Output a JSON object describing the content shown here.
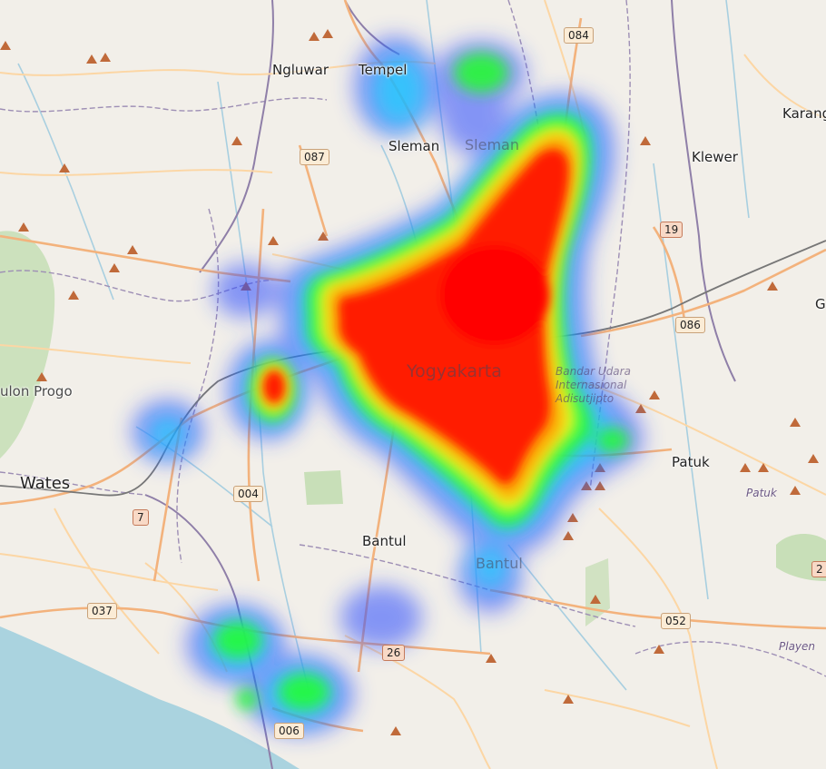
{
  "map": {
    "places": {
      "yogyakarta": "Yogyakarta",
      "sleman": "Sleman",
      "sleman_faded": "Sleman",
      "bantul": "Bantul",
      "bantul_faded": "Bantul",
      "wates": "Wates",
      "ngluwar": "Ngluwar",
      "tempel": "Tempel",
      "klewer": "Klewer",
      "karang": "Karang",
      "patuk": "Patuk",
      "patuk_italic": "Patuk",
      "playen": "Playen",
      "kulon_progo": "ulon Progo",
      "g_edge": "G",
      "airport": "Bandar Udara Internasional Adisutjipto"
    },
    "road_shields": [
      "084",
      "087",
      "19",
      "086",
      "004",
      "7",
      "037",
      "26",
      "006",
      "052",
      "2"
    ],
    "colors": {
      "land": "#f2efe9",
      "sea": "#aad3df",
      "forest": "#add19e",
      "road_major": "#f3b27c",
      "road_minor": "#fcd6a4",
      "boundary": "#9e8fb5",
      "river": "#a8cfe0",
      "rail": "#777777",
      "peak": "#c06a3a"
    },
    "heatmap": {
      "gradient": [
        "#0000ff",
        "#00ffff",
        "#00ff00",
        "#ffff00",
        "#ff0000"
      ]
    }
  }
}
